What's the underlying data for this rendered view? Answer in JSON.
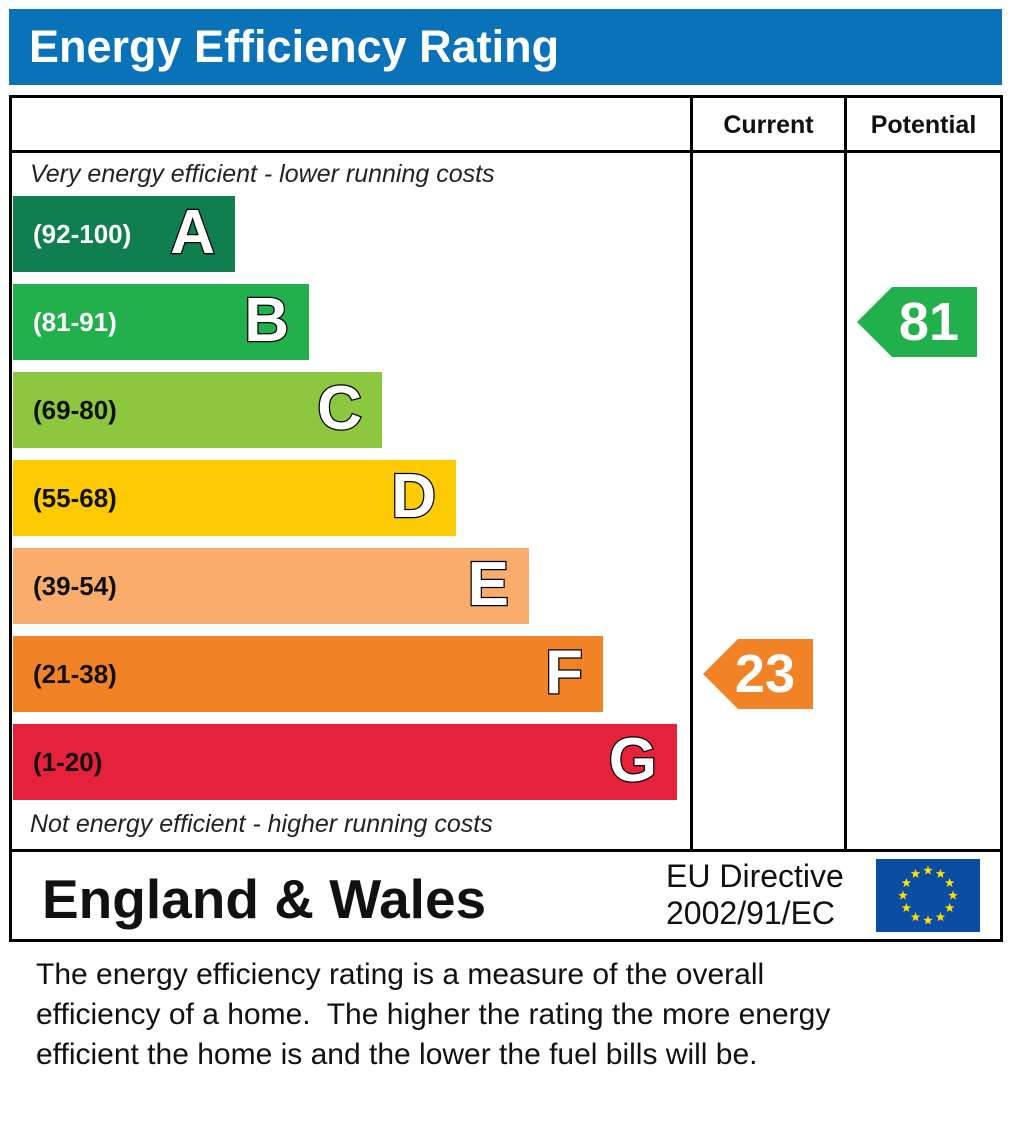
{
  "header": {
    "title": "Energy Efficiency Rating"
  },
  "columns": {
    "current": "Current",
    "potential": "Potential"
  },
  "scale": {
    "top_note": "Very energy efficient - lower running costs",
    "bottom_note": "Not energy efficient - higher running costs"
  },
  "chart_data": {
    "type": "bar",
    "categories": [
      "A",
      "B",
      "C",
      "D",
      "E",
      "F",
      "G"
    ],
    "ranges": [
      "(92-100)",
      "(81-91)",
      "(69-80)",
      "(55-68)",
      "(39-54)",
      "(21-38)",
      "(1-20)"
    ],
    "colors": [
      "#0f7f4f",
      "#21b04b",
      "#8dc63f",
      "#fecb02",
      "#f9ac6b",
      "#f18225",
      "#e6213c"
    ],
    "range_text_colors": [
      "#ffffff",
      "#ffffff",
      "#111111",
      "#111111",
      "#111111",
      "#111111",
      "#111111"
    ],
    "current": {
      "value": 23,
      "band": "F",
      "color": "#f18225"
    },
    "potential": {
      "value": 81,
      "band": "B",
      "color": "#21b04b"
    }
  },
  "footer": {
    "region": "England & Wales",
    "directive_line1": "EU Directive",
    "directive_line2": "2002/91/EC",
    "flag_colors": {
      "field": "#0a4da2",
      "stars": "#ffdd00"
    }
  },
  "description": {
    "line1": "The energy efficiency rating is a measure of the overall",
    "line2": "efficiency of a home.  The higher the rating the more energy",
    "line3": "efficient the home is and the lower the fuel bills will be."
  }
}
